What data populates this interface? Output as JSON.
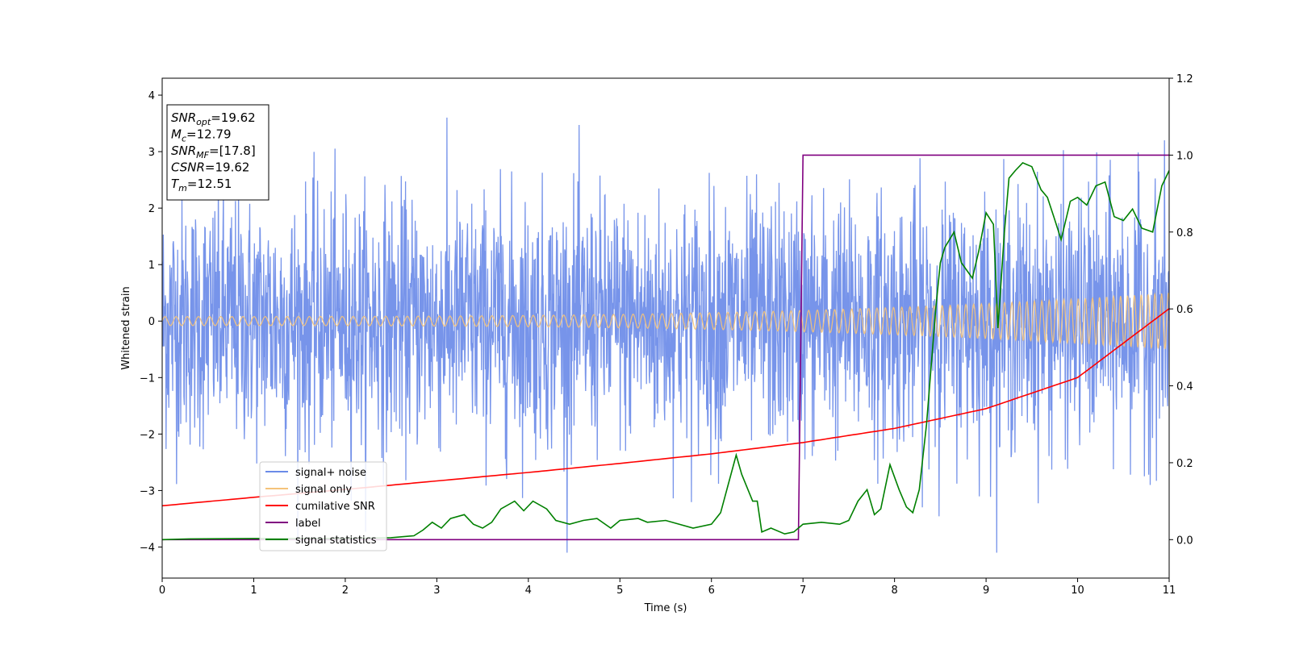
{
  "chart_data": {
    "type": "line",
    "xlabel": "Time (s)",
    "ylabel": "Whitened strain",
    "xlim": [
      0,
      11
    ],
    "ylim_left": [
      -4.55,
      4.3
    ],
    "ylim_right": [
      -0.1,
      1.2
    ],
    "x_ticks": [
      0,
      1,
      2,
      3,
      4,
      5,
      6,
      7,
      8,
      9,
      10,
      11
    ],
    "y_ticks_left": [
      -4,
      -3,
      -2,
      -1,
      0,
      1,
      2,
      3,
      4
    ],
    "y_ticks_right": [
      0.0,
      0.2,
      0.4,
      0.6,
      0.8,
      1.0,
      1.2
    ],
    "legend_position": "lower-left",
    "series": [
      {
        "name": "signal+ noise",
        "color": "#6b8be8",
        "axis": "left",
        "kind": "noise",
        "approx_std": 1.1,
        "approx_range": [
          -4.1,
          3.85
        ]
      },
      {
        "name": "signal only",
        "color": "#f5c37a",
        "axis": "left",
        "kind": "chirp",
        "amplitude_start": 0.08,
        "amplitude_end": 0.5
      },
      {
        "name": "cumilative SNR",
        "color": "#ff0000",
        "axis": "left",
        "x": [
          0,
          1,
          2,
          3,
          4,
          5,
          6,
          7,
          8,
          9,
          10,
          11
        ],
        "y": [
          -3.27,
          -3.12,
          -2.98,
          -2.83,
          -2.68,
          -2.52,
          -2.35,
          -2.15,
          -1.9,
          -1.55,
          -1.0,
          0.22
        ]
      },
      {
        "name": "label",
        "color": "#800080",
        "axis": "right",
        "x": [
          0,
          6.95,
          7.0,
          11
        ],
        "y": [
          0.0,
          0.0,
          1.0,
          1.0
        ]
      },
      {
        "name": "signal statistics",
        "color": "#008000",
        "axis": "right",
        "x": [
          0,
          0.3,
          1.0,
          2.0,
          2.5,
          2.75,
          2.85,
          2.95,
          3.05,
          3.15,
          3.3,
          3.4,
          3.5,
          3.6,
          3.7,
          3.85,
          3.95,
          4.05,
          4.2,
          4.3,
          4.45,
          4.6,
          4.75,
          4.9,
          5.0,
          5.2,
          5.3,
          5.5,
          5.8,
          6.0,
          6.1,
          6.18,
          6.27,
          6.33,
          6.45,
          6.5,
          6.55,
          6.65,
          6.8,
          6.9,
          7.0,
          7.2,
          7.4,
          7.5,
          7.6,
          7.7,
          7.78,
          7.85,
          7.95,
          8.05,
          8.13,
          8.2,
          8.27,
          8.35,
          8.45,
          8.5,
          8.55,
          8.65,
          8.73,
          8.85,
          8.92,
          9.0,
          9.08,
          9.13,
          9.2,
          9.25,
          9.32,
          9.4,
          9.5,
          9.6,
          9.67,
          9.74,
          9.82,
          9.92,
          10.0,
          10.1,
          10.2,
          10.3,
          10.4,
          10.5,
          10.6,
          10.7,
          10.82,
          10.92,
          11.0
        ],
        "y": [
          0.0,
          0.002,
          0.003,
          0.003,
          0.005,
          0.01,
          0.025,
          0.045,
          0.03,
          0.055,
          0.065,
          0.04,
          0.03,
          0.045,
          0.08,
          0.1,
          0.075,
          0.1,
          0.08,
          0.05,
          0.04,
          0.05,
          0.055,
          0.03,
          0.05,
          0.055,
          0.045,
          0.05,
          0.03,
          0.04,
          0.07,
          0.14,
          0.22,
          0.17,
          0.1,
          0.1,
          0.02,
          0.03,
          0.015,
          0.02,
          0.04,
          0.045,
          0.04,
          0.05,
          0.1,
          0.13,
          0.065,
          0.08,
          0.195,
          0.13,
          0.085,
          0.07,
          0.13,
          0.3,
          0.6,
          0.72,
          0.76,
          0.8,
          0.72,
          0.68,
          0.75,
          0.85,
          0.82,
          0.55,
          0.8,
          0.94,
          0.96,
          0.98,
          0.97,
          0.91,
          0.89,
          0.84,
          0.78,
          0.88,
          0.89,
          0.87,
          0.92,
          0.93,
          0.84,
          0.83,
          0.86,
          0.81,
          0.8,
          0.92,
          0.96
        ]
      }
    ]
  },
  "info_box": {
    "lines": [
      {
        "main": "SNR",
        "sub": "opt",
        "value": "=19.62"
      },
      {
        "main": "M",
        "sub": "c",
        "value": "=12.79"
      },
      {
        "main": "SNR",
        "sub": "MF",
        "value": "=[17.8]"
      },
      {
        "main": "CSNR",
        "sub": "",
        "value": "=19.62"
      },
      {
        "main": "T",
        "sub": "m",
        "value": "=12.51"
      }
    ]
  }
}
